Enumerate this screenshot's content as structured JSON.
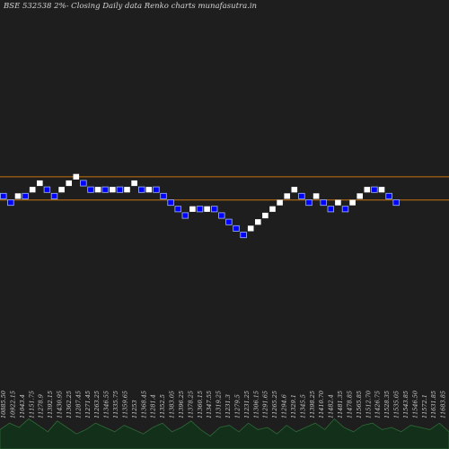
{
  "header": {
    "title": "BSE 532538  2%-  Closing Daily data Renko  charts munafasutra.in"
  },
  "colors": {
    "background": "#1e1e1e",
    "up_brick": "#ffffff",
    "down_brick": "#0000ff",
    "down_brick_border": "#9fb8ff",
    "reference_line": "#c87410",
    "volume_fill": "#12301a",
    "volume_line": "#2f6a36"
  },
  "chart_data": {
    "type": "renko",
    "brick_size_label": "2%",
    "price_levels": [
      11382.0,
      11611.7,
      11845.9,
      12085.1,
      12329.2,
      12578.2,
      12832.2,
      13091.4,
      13355.8,
      13625.6,
      13900.8,
      14181.5,
      14467.9,
      14760.0,
      15058.1
    ],
    "reference_lines": [
      {
        "name": "upper",
        "level": 14320
      },
      {
        "name": "lower",
        "level": 13330
      }
    ],
    "bricks": [
      {
        "dir": "down",
        "top": 13625.6,
        "bottom": 13355.8
      },
      {
        "dir": "down",
        "top": 13355.8,
        "bottom": 13091.4
      },
      {
        "dir": "up",
        "top": 13625.6,
        "bottom": 13355.8
      },
      {
        "dir": "down",
        "top": 13625.6,
        "bottom": 13355.8
      },
      {
        "dir": "up",
        "top": 13900.8,
        "bottom": 13625.6
      },
      {
        "dir": "up",
        "top": 14181.5,
        "bottom": 13900.8
      },
      {
        "dir": "down",
        "top": 13900.8,
        "bottom": 13625.6
      },
      {
        "dir": "down",
        "top": 13625.6,
        "bottom": 13355.8
      },
      {
        "dir": "up",
        "top": 13900.8,
        "bottom": 13625.6
      },
      {
        "dir": "up",
        "top": 14181.5,
        "bottom": 13900.8
      },
      {
        "dir": "up",
        "top": 14467.9,
        "bottom": 14181.5
      },
      {
        "dir": "down",
        "top": 14181.5,
        "bottom": 13900.8
      },
      {
        "dir": "down",
        "top": 13900.8,
        "bottom": 13625.6
      },
      {
        "dir": "up",
        "top": 13900.8,
        "bottom": 13625.6
      },
      {
        "dir": "down",
        "top": 13900.8,
        "bottom": 13625.6
      },
      {
        "dir": "up",
        "top": 13900.8,
        "bottom": 13625.6
      },
      {
        "dir": "down",
        "top": 13900.8,
        "bottom": 13625.6
      },
      {
        "dir": "up",
        "top": 13900.8,
        "bottom": 13625.6
      },
      {
        "dir": "up",
        "top": 14181.5,
        "bottom": 13900.8
      },
      {
        "dir": "down",
        "top": 13900.8,
        "bottom": 13625.6
      },
      {
        "dir": "up",
        "top": 13900.8,
        "bottom": 13625.6
      },
      {
        "dir": "down",
        "top": 13900.8,
        "bottom": 13625.6
      },
      {
        "dir": "down",
        "top": 13625.6,
        "bottom": 13355.8
      },
      {
        "dir": "down",
        "top": 13355.8,
        "bottom": 13091.4
      },
      {
        "dir": "down",
        "top": 13091.4,
        "bottom": 12832.2
      },
      {
        "dir": "down",
        "top": 12832.2,
        "bottom": 12578.2
      },
      {
        "dir": "up",
        "top": 13091.4,
        "bottom": 12832.2
      },
      {
        "dir": "down",
        "top": 13091.4,
        "bottom": 12832.2
      },
      {
        "dir": "up",
        "top": 13091.4,
        "bottom": 12832.2
      },
      {
        "dir": "down",
        "top": 13091.4,
        "bottom": 12832.2
      },
      {
        "dir": "down",
        "top": 12832.2,
        "bottom": 12578.2
      },
      {
        "dir": "down",
        "top": 12578.2,
        "bottom": 12329.2
      },
      {
        "dir": "down",
        "top": 12329.2,
        "bottom": 12085.1
      },
      {
        "dir": "down",
        "top": 12085.1,
        "bottom": 11845.9
      },
      {
        "dir": "up",
        "top": 12329.2,
        "bottom": 12085.1
      },
      {
        "dir": "up",
        "top": 12578.2,
        "bottom": 12329.2
      },
      {
        "dir": "up",
        "top": 12832.2,
        "bottom": 12578.2
      },
      {
        "dir": "up",
        "top": 13091.4,
        "bottom": 12832.2
      },
      {
        "dir": "up",
        "top": 13355.8,
        "bottom": 13091.4
      },
      {
        "dir": "up",
        "top": 13625.6,
        "bottom": 13355.8
      },
      {
        "dir": "up",
        "top": 13900.8,
        "bottom": 13625.6
      },
      {
        "dir": "down",
        "top": 13625.6,
        "bottom": 13355.8
      },
      {
        "dir": "down",
        "top": 13355.8,
        "bottom": 13091.4
      },
      {
        "dir": "up",
        "top": 13625.6,
        "bottom": 13355.8
      },
      {
        "dir": "down",
        "top": 13355.8,
        "bottom": 13091.4
      },
      {
        "dir": "down",
        "top": 13091.4,
        "bottom": 12832.2
      },
      {
        "dir": "up",
        "top": 13355.8,
        "bottom": 13091.4
      },
      {
        "dir": "down",
        "top": 13091.4,
        "bottom": 12832.2
      },
      {
        "dir": "up",
        "top": 13355.8,
        "bottom": 13091.4
      },
      {
        "dir": "up",
        "top": 13625.6,
        "bottom": 13355.8
      },
      {
        "dir": "up",
        "top": 13900.8,
        "bottom": 13625.6
      },
      {
        "dir": "down",
        "top": 13900.8,
        "bottom": 13625.6
      },
      {
        "dir": "up",
        "top": 13900.8,
        "bottom": 13625.6
      },
      {
        "dir": "down",
        "top": 13625.6,
        "bottom": 13355.8
      },
      {
        "dir": "down",
        "top": 13355.8,
        "bottom": 13091.4
      }
    ],
    "volume_labels": [
      "10885.50",
      "10922.15",
      "11043.4",
      "11151.75",
      "11278.9",
      "11392.15",
      "11430.95",
      "11362.25",
      "11287.45",
      "11271.45",
      "11263.25",
      "11346.55",
      "11335.75",
      "11359.65",
      "11253",
      "11368.45",
      "11281.4",
      "11352.5",
      "11383.05",
      "11396.25",
      "11378.25",
      "11360.15",
      "11347.55",
      "11319.25",
      "11231.3",
      "11279.5",
      "11231.25",
      "11306.15",
      "11291.65",
      "11265.25",
      "11294.6",
      "11329.1",
      "11345.5",
      "11398.25",
      "11410.70",
      "11482.4",
      "11481.35",
      "11478.85",
      "11565.85",
      "11512.70",
      "11426.75",
      "11528.35",
      "11535.05",
      "11543.85",
      "11546.50",
      "11572.1",
      "11631.85",
      "11683.85"
    ],
    "volume_levels": [
      0.45,
      0.6,
      0.5,
      0.7,
      0.55,
      0.4,
      0.65,
      0.5,
      0.35,
      0.45,
      0.6,
      0.5,
      0.4,
      0.55,
      0.45,
      0.35,
      0.5,
      0.6,
      0.4,
      0.5,
      0.65,
      0.45,
      0.3,
      0.5,
      0.55,
      0.4,
      0.6,
      0.45,
      0.5,
      0.35,
      0.55,
      0.4,
      0.5,
      0.6,
      0.45,
      0.7,
      0.5,
      0.4,
      0.55,
      0.6,
      0.45,
      0.5,
      0.4,
      0.55,
      0.5,
      0.45,
      0.6,
      0.4
    ]
  }
}
